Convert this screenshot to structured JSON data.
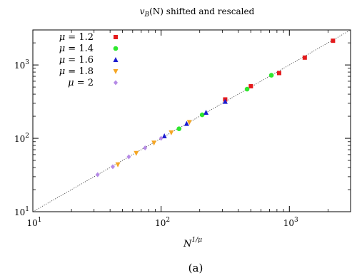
{
  "chart_data": {
    "type": "scatter",
    "title": "v_B(N) shifted and rescaled",
    "xlabel": "N^(1/μ)",
    "ylabel": "",
    "caption": "(a)",
    "xscale": "log",
    "yscale": "log",
    "xlim": [
      10,
      3000
    ],
    "ylim": [
      10,
      3000
    ],
    "x_ticks": [
      {
        "value": 10,
        "base": "10",
        "exp": "1"
      },
      {
        "value": 100,
        "base": "10",
        "exp": "2"
      },
      {
        "value": 1000,
        "base": "10",
        "exp": "3"
      }
    ],
    "y_ticks": [
      {
        "value": 10,
        "base": "10",
        "exp": "1"
      },
      {
        "value": 100,
        "base": "10",
        "exp": "2"
      },
      {
        "value": 1000,
        "base": "10",
        "exp": "3"
      }
    ],
    "grid": false,
    "legend_position": "top-left",
    "reference_line": {
      "style": "dotted",
      "points": [
        [
          10,
          10
        ],
        [
          3000,
          3000
        ]
      ]
    },
    "series": [
      {
        "name": "μ = 1.2",
        "marker": "square",
        "color": "#e41a1c",
        "x": [
          316,
          501,
          832,
          1318,
          2188
        ],
        "y": [
          339,
          513,
          776,
          1259,
          2138
        ]
      },
      {
        "name": "μ = 1.4",
        "marker": "circle",
        "color": "#2ee82e",
        "x": [
          138,
          209,
          468,
          724
        ],
        "y": [
          135,
          209,
          468,
          724
        ]
      },
      {
        "name": "μ = 1.6",
        "marker": "triangle-up",
        "color": "#1c1ccf",
        "x": [
          106,
          158,
          224,
          316
        ],
        "y": [
          107,
          158,
          224,
          316
        ]
      },
      {
        "name": "μ = 1.8",
        "marker": "triangle-down",
        "color": "#f5a623",
        "x": [
          46,
          64,
          88,
          120,
          166
        ],
        "y": [
          44,
          63,
          87,
          120,
          166
        ]
      },
      {
        "name": "μ = 2",
        "marker": "diamond",
        "color": "#b58ae6",
        "x": [
          32,
          42,
          56,
          75,
          100
        ],
        "y": [
          32,
          41,
          56,
          74,
          100
        ]
      }
    ]
  }
}
